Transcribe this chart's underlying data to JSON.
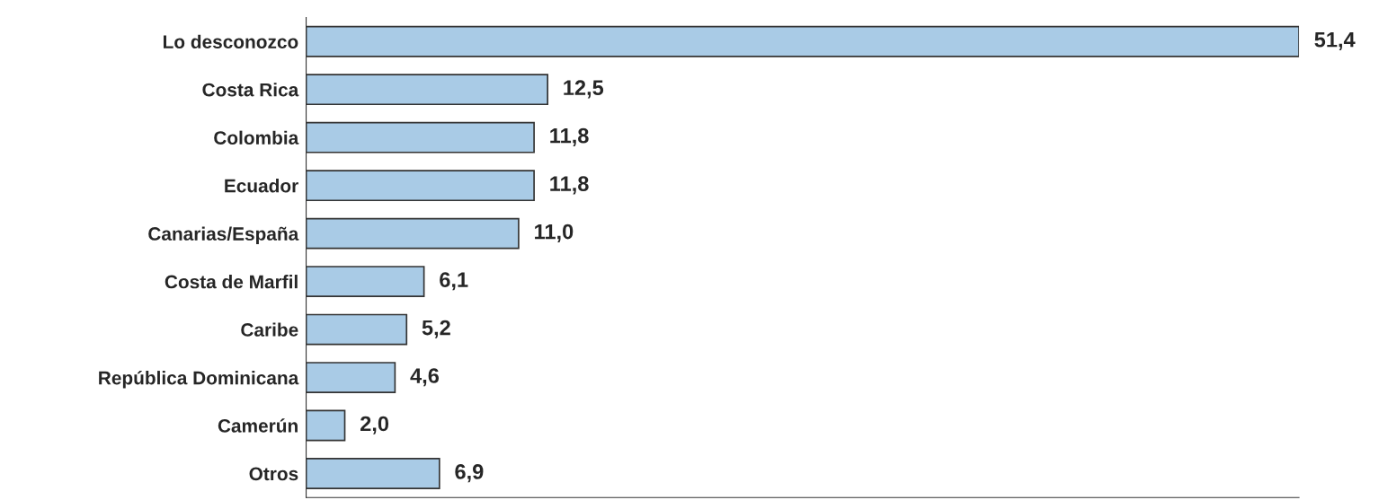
{
  "chart_data": {
    "type": "bar",
    "orientation": "horizontal",
    "categories": [
      "Lo desconozco",
      "Costa Rica",
      "Colombia",
      "Ecuador",
      "Canarias/España",
      "Costa de Marfil",
      "Caribe",
      "República Dominicana",
      "Camerún",
      "Otros"
    ],
    "values": [
      51.4,
      12.5,
      11.8,
      11.8,
      11.0,
      6.1,
      5.2,
      4.6,
      2.0,
      6.9
    ],
    "value_labels": [
      "51,4",
      "12,5",
      "11,8",
      "11,8",
      "11,0",
      "6,1",
      "5,2",
      "4,6",
      "2,0",
      "6,9"
    ],
    "color": "#a9cbe6",
    "grid": false,
    "legend": false
  }
}
